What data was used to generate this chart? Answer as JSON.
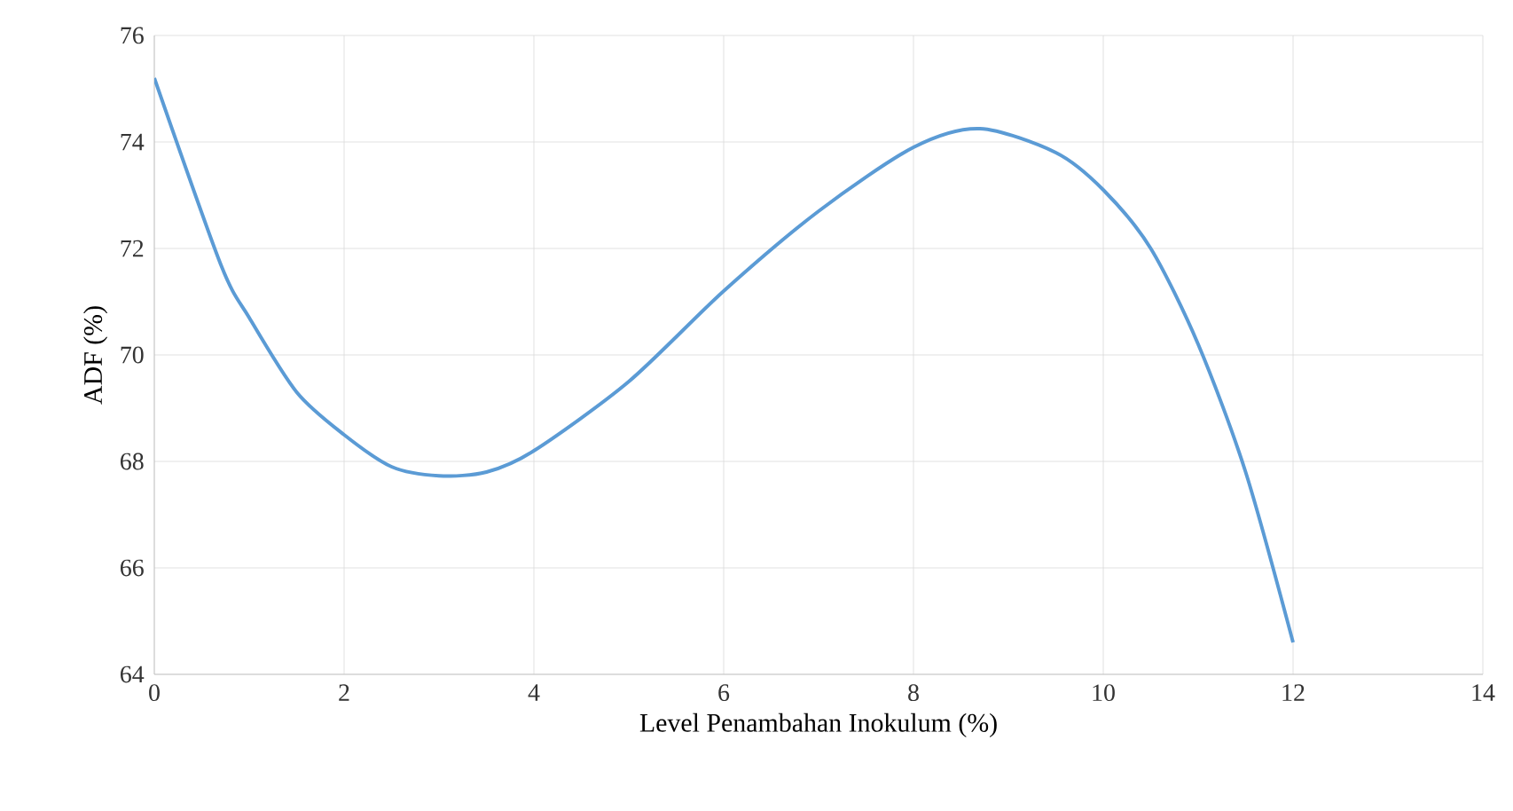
{
  "chart_data": {
    "type": "line",
    "xlabel": "Level Penambahan Inokulum (%)",
    "ylabel": "ADF (%)",
    "x": [
      0,
      0.7,
      1,
      1.5,
      2,
      2.5,
      3,
      3.5,
      4,
      5,
      6,
      7,
      8,
      8.7,
      9.5,
      10,
      10.5,
      11,
      11.5,
      12
    ],
    "series": [
      {
        "color": "#5b9bd5",
        "values": [
          75.2,
          71.7,
          70.7,
          69.3,
          68.5,
          67.9,
          67.73,
          67.8,
          68.2,
          69.5,
          71.2,
          72.7,
          73.9,
          74.25,
          73.8,
          73.1,
          72.0,
          70.2,
          67.8,
          64.6
        ]
      }
    ],
    "xlim": [
      0,
      14
    ],
    "ylim": [
      64,
      76
    ],
    "xticks": [
      0,
      2,
      4,
      6,
      8,
      10,
      12,
      14
    ],
    "yticks": [
      64,
      66,
      68,
      70,
      72,
      74,
      76
    ],
    "grid": true,
    "marker": "none",
    "line_style": "solid"
  }
}
